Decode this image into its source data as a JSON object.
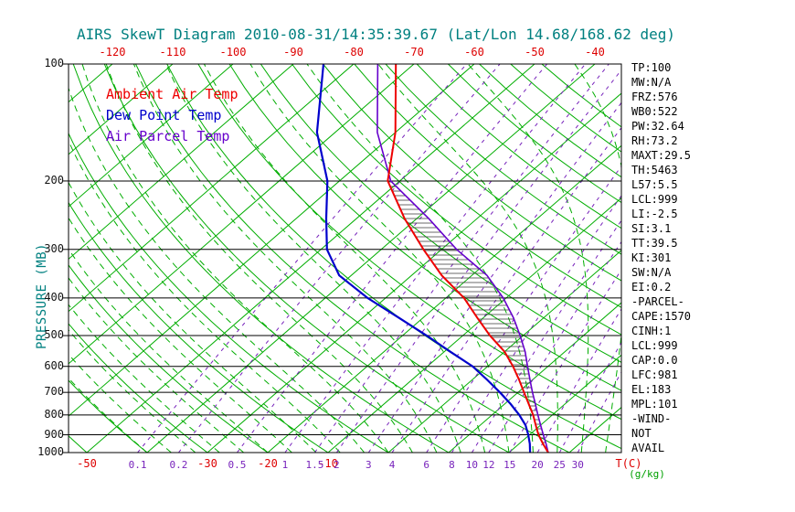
{
  "title": "AIRS SkewT Diagram 2010-08-31/14:35:39.67 (Lat/Lon 14.68/168.62 deg)",
  "ylabel": "PRESSURE (MB)",
  "colors": {
    "title": "#008080",
    "axis_text": "#000000",
    "temp_ticks": "#dd0000",
    "mixing_ticks": "#7722bb",
    "gkg_label": "#00a000",
    "isotherm": "#00ad00",
    "dry_adiabat": "#00ad00",
    "moist_adiabat": "#00ad00",
    "mixing_ratio": "#7722bb",
    "pressure_line": "#000000",
    "frame": "#000000",
    "hatch": "#3a3a3a"
  },
  "legend": [
    {
      "label": "Ambient Air Temp",
      "color": "#ee0000"
    },
    {
      "label": "Dew Point Temp",
      "color": "#0000cc"
    },
    {
      "label": "Air Parcel Temp",
      "color": "#6600cc"
    }
  ],
  "stats": [
    "TP:100",
    "MW:N/A",
    "FRZ:576",
    "WB0:522",
    "PW:32.64",
    "RH:73.2",
    "MAXT:29.5",
    "TH:5463",
    "L57:5.5",
    "LCL:999",
    "LI:-2.5",
    "SI:3.1",
    "TT:39.5",
    "KI:301",
    "SW:N/A",
    "EI:0.2",
    "-PARCEL-",
    "CAPE:1570",
    "CINH:1",
    "LCL:999",
    "CAP:0.0",
    "LFC:981",
    "EL:183",
    "MPL:101",
    "-WIND-",
    "NOT",
    "AVAIL"
  ],
  "chart_data": {
    "type": "line",
    "variant": "skew-t-log-p",
    "title": "AIRS SkewT Diagram 2010-08-31/14:35:39.67 (Lat/Lon 14.68/168.62 deg)",
    "ylabel": "PRESSURE (MB)",
    "y_axis": {
      "scale": "log",
      "unit": "MB",
      "ticks": [
        100,
        200,
        300,
        400,
        500,
        600,
        700,
        800,
        900,
        1000
      ],
      "range": [
        100,
        1000
      ]
    },
    "top_axis_temp_ticks": [
      -120,
      -110,
      -100,
      -90,
      -80,
      -70,
      -60,
      -50,
      -40
    ],
    "bottom_axis_temp_ticks": [
      -50,
      -30,
      -20,
      -10
    ],
    "bottom_axis_temp_label": "T(C)",
    "mixing_ratio_ticks": [
      0.1,
      0.2,
      0.5,
      1,
      1.5,
      2,
      3,
      4,
      6,
      8,
      10,
      12,
      15,
      20,
      25,
      30
    ],
    "mixing_ratio_label": "(g/kg)",
    "background_lines": {
      "isotherms": {
        "min": -160,
        "max": 40,
        "step": 10,
        "style": "solid"
      },
      "dry_adiabats": {
        "min": -60,
        "max": 160,
        "step": 10,
        "style": "solid"
      },
      "moist_adiabats": {
        "min": -40,
        "max": 36,
        "step": 4,
        "style": "dashed"
      },
      "mixing_ratio_lines": [
        0.1,
        0.2,
        0.5,
        1,
        1.5,
        2,
        3,
        4,
        6,
        8,
        10,
        12,
        15,
        20,
        25,
        30
      ]
    },
    "pressure": [
      1000,
      950,
      900,
      850,
      800,
      750,
      700,
      650,
      600,
      550,
      500,
      450,
      400,
      350,
      300,
      250,
      200,
      150,
      100
    ],
    "series": [
      {
        "name": "Ambient Air Temp",
        "color": "#ee0000",
        "values": [
          26.5,
          24.0,
          21.5,
          19.2,
          16.8,
          14.0,
          11.0,
          7.8,
          4.2,
          0.0,
          -5.5,
          -11.0,
          -17.0,
          -25.0,
          -33.0,
          -42.0,
          -52.0,
          -60.0,
          -73.0
        ]
      },
      {
        "name": "Dew Point Temp",
        "color": "#0000cc",
        "values": [
          23.5,
          21.8,
          19.8,
          17.5,
          14.5,
          11.0,
          7.0,
          2.5,
          -2.5,
          -9.0,
          -16.0,
          -24.0,
          -33.0,
          -42.0,
          -49.0,
          -55.0,
          -62.0,
          -73.0,
          -85.0
        ]
      },
      {
        "name": "Air Parcel Temp",
        "color": "#6600cc",
        "values": [
          26.5,
          24.5,
          22.3,
          20.0,
          17.6,
          15.1,
          12.4,
          9.6,
          6.6,
          3.4,
          -0.5,
          -5.0,
          -10.5,
          -17.5,
          -27.5,
          -38.0,
          -51.5,
          -63.0,
          -76.0
        ]
      }
    ],
    "hatched_region": "between Ambient Air Temp and Air Parcel Temp where parcel is warmer (CAPE)"
  }
}
